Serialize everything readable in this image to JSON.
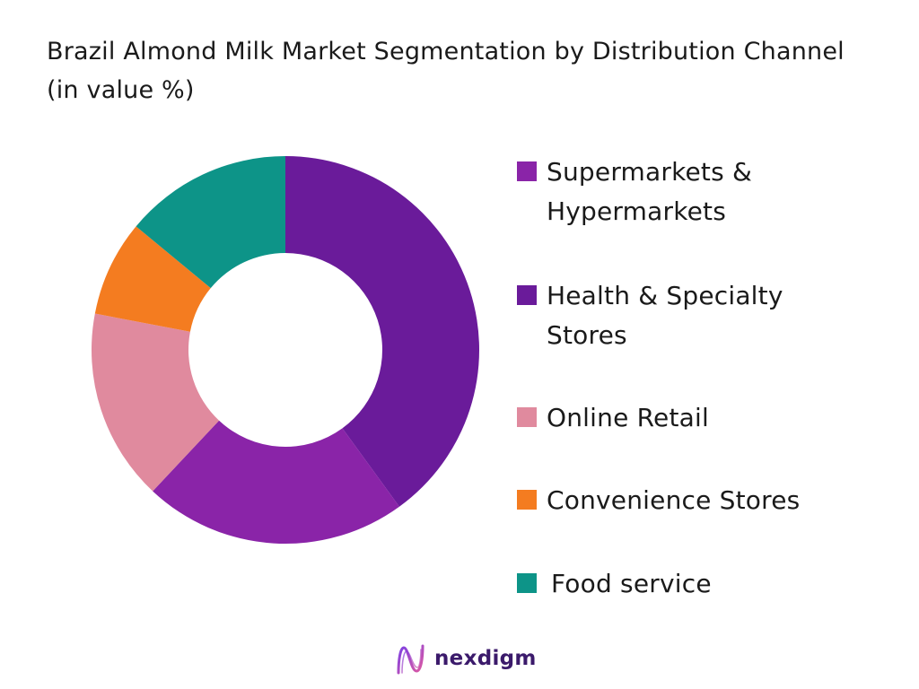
{
  "chart_data": {
    "type": "pie",
    "subtype": "donut",
    "title": "Brazil Almond Milk Market Segmentation by Distribution Channel (in value %)",
    "categories": [
      "Supermarkets & Hypermarkets",
      "Health & Specialty Stores",
      "Online Retail",
      "Convenience Stores",
      "Food service"
    ],
    "values": [
      22,
      40,
      16,
      8,
      14
    ],
    "slice_order_clockwise_from_top": [
      "Health & Specialty Stores",
      "Supermarkets & Hypermarkets",
      "Online Retail",
      "Convenience Stores",
      "Food service"
    ],
    "colors": {
      "Supermarkets & Hypermarkets": "#8a24a8",
      "Health & Specialty Stores": "#6a1b9a",
      "Online Retail": "#e08a9e",
      "Convenience Stores": "#f47c20",
      "Food service": "#0d9488"
    },
    "legend_position": "right"
  },
  "legend": [
    {
      "label": "Supermarkets &\nHypermarkets",
      "color": "#8a24a8"
    },
    {
      "label": "Health & Specialty\nStores",
      "color": "#6a1b9a"
    },
    {
      "label": "Online Retail",
      "color": "#e08a9e"
    },
    {
      "label": "Convenience Stores",
      "color": "#f47c20"
    },
    {
      "label": "Food service",
      "color": "#0d9488"
    }
  ],
  "brand": {
    "name": "nexdigm",
    "logo_icon": "nexdigm-logo-icon"
  }
}
